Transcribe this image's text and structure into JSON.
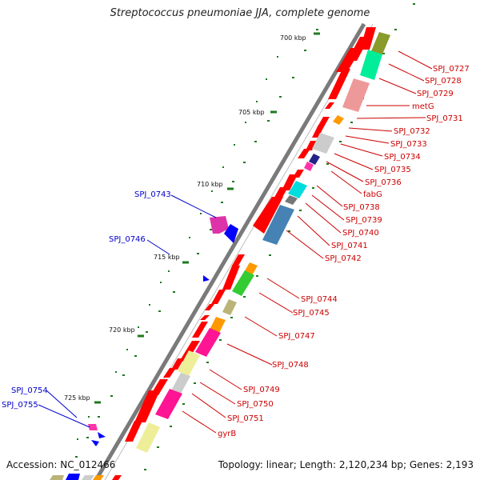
{
  "title": "Streptococcus pneumoniae JJA, complete genome",
  "footer": {
    "accession_label": "Accession:",
    "accession": "NC_012466",
    "topology_label": "Topology:",
    "topology": "linear",
    "length_label": "Length:",
    "length": "2,120,234 bp",
    "genes_label": "Genes:",
    "genes": "2,193"
  },
  "colors": {
    "backbone": "#7a7a7a",
    "tick": "#1f7a1f",
    "forward_gene": "#ff0000",
    "forward_label": "#cc0000",
    "reverse_label": "#0000cc",
    "reverse_gene": "#0000ff"
  },
  "scale_ticks": [
    "700 kbp",
    "705 kbp",
    "710 kbp",
    "715 kbp",
    "720 kbp",
    "725 kbp"
  ],
  "forward_gene_labels": [
    "SPJ_0727",
    "SPJ_0728",
    "SPJ_0729",
    "metG",
    "SPJ_0731",
    "SPJ_0732",
    "SPJ_0733",
    "SPJ_0734",
    "SPJ_0735",
    "SPJ_0736",
    "fabG",
    "SPJ_0738",
    "SPJ_0739",
    "SPJ_0740",
    "SPJ_0741",
    "SPJ_0742",
    "SPJ_0744",
    "SPJ_0745",
    "SPJ_0747",
    "SPJ_0748",
    "SPJ_0749",
    "SPJ_0750",
    "SPJ_0751",
    "gyrB"
  ],
  "reverse_gene_labels": [
    "SPJ_0743",
    "SPJ_0746",
    "SPJ_0754",
    "SPJ_0755"
  ],
  "cog_colors": [
    "#8a9a2b",
    "#00ee99",
    "#ee9999",
    "#ff9900",
    "#cccccc",
    "#222288",
    "#ff33aa",
    "#00dddd",
    "#777777",
    "#4682b4",
    "#33cc33",
    "#bbb377",
    "#eeee99",
    "#ff1493",
    "#dd33aa"
  ]
}
